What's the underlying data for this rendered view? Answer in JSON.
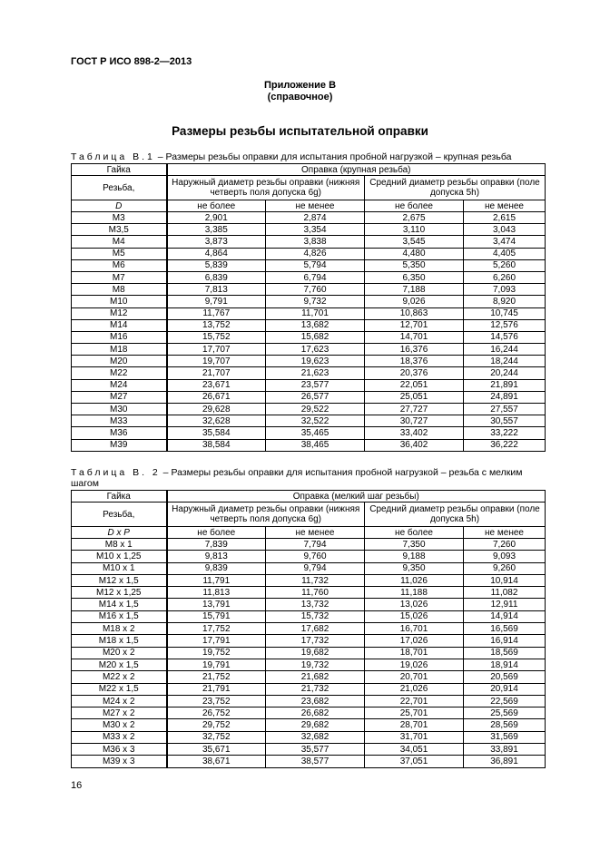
{
  "header": {
    "standard": "ГОСТ Р ИСО 898-2—2013"
  },
  "appendix": {
    "title": "Приложение В",
    "note": "(справочное)"
  },
  "section_title": "Размеры резьбы испытательной оправки",
  "tables": [
    {
      "caption_prefix": "Таблица В.1",
      "caption_text": " – Размеры резьбы оправки для испытания пробной нагрузкой – крупная резьба",
      "col_nut": "Гайка",
      "col_mandrel": "Оправка (крупная резьба)",
      "col_thread": "Резьба,",
      "col_thread_sym": "D",
      "col_outer": "Наружный диаметр резьбы оправки (нижняя четверть поля допуска 6g)",
      "col_pitch": "Средний диаметр резьбы оправки (поле допуска 5h)",
      "max_label": "не более",
      "min_label": "не менее",
      "rows": [
        [
          "M3",
          "2,901",
          "2,874",
          "2,675",
          "2,615"
        ],
        [
          "M3,5",
          "3,385",
          "3,354",
          "3,110",
          "3,043"
        ],
        [
          "M4",
          "3,873",
          "3,838",
          "3,545",
          "3,474"
        ],
        [
          "M5",
          "4,864",
          "4,826",
          "4,480",
          "4,405"
        ],
        [
          "M6",
          "5,839",
          "5,794",
          "5,350",
          "5,260"
        ],
        [
          "M7",
          "6,839",
          "6,794",
          "6,350",
          "6,260"
        ],
        [
          "M8",
          "7,813",
          "7,760",
          "7,188",
          "7,093"
        ],
        [
          "M10",
          "9,791",
          "9,732",
          "9,026",
          "8,920"
        ],
        [
          "M12",
          "11,767",
          "11,701",
          "10,863",
          "10,745"
        ],
        [
          "M14",
          "13,752",
          "13,682",
          "12,701",
          "12,576"
        ],
        [
          "M16",
          "15,752",
          "15,682",
          "14,701",
          "14,576"
        ],
        [
          "M18",
          "17,707",
          "17,623",
          "16,376",
          "16,244"
        ],
        [
          "M20",
          "19,707",
          "19,623",
          "18,376",
          "18,244"
        ],
        [
          "M22",
          "21,707",
          "21,623",
          "20,376",
          "20,244"
        ],
        [
          "M24",
          "23,671",
          "23,577",
          "22,051",
          "21,891"
        ],
        [
          "M27",
          "26,671",
          "26,577",
          "25,051",
          "24,891"
        ],
        [
          "M30",
          "29,628",
          "29,522",
          "27,727",
          "27,557"
        ],
        [
          "M33",
          "32,628",
          "32,522",
          "30,727",
          "30,557"
        ],
        [
          "M36",
          "35,584",
          "35,465",
          "33,402",
          "33,222"
        ],
        [
          "M39",
          "38,584",
          "38,465",
          "36,402",
          "36,222"
        ]
      ]
    },
    {
      "caption_prefix": "Таблица В. 2",
      "caption_text": " – Размеры резьбы оправки для испытания пробной нагрузкой – резьба с мелким шагом",
      "col_nut": "Гайка",
      "col_mandrel": "Оправка (мелкий шаг резьбы)",
      "col_thread": "Резьба,",
      "col_thread_sym": "D x P",
      "col_outer": "Наружный диаметр резьбы оправки (нижняя четверть поля допуска 6g)",
      "col_pitch": "Средний диаметр резьбы оправки (поле допуска 5h)",
      "max_label": "не более",
      "min_label": "не менее",
      "rows": [
        [
          "M8 x 1",
          "7,839",
          "7,794",
          "7,350",
          "7,260"
        ],
        [
          "M10 x 1,25",
          "9,813",
          "9,760",
          "9,188",
          "9,093"
        ],
        [
          "M10 x 1",
          "9,839",
          "9,794",
          "9,350",
          "9,260"
        ],
        [
          "M12 x 1,5",
          "11,791",
          "11,732",
          "11,026",
          "10,914"
        ],
        [
          "M12 x 1,25",
          "11,813",
          "11,760",
          "11,188",
          "11,082"
        ],
        [
          "M14 x 1,5",
          "13,791",
          "13,732",
          "13,026",
          "12,911"
        ],
        [
          "M16 x 1,5",
          "15,791",
          "15,732",
          "15,026",
          "14,914"
        ],
        [
          "M18 x 2",
          "17,752",
          "17,682",
          "16,701",
          "16,569"
        ],
        [
          "M18 x 1,5",
          "17,791",
          "17,732",
          "17,026",
          "16,914"
        ],
        [
          "M20 x 2",
          "19,752",
          "19,682",
          "18,701",
          "18,569"
        ],
        [
          "M20 x 1,5",
          "19,791",
          "19,732",
          "19,026",
          "18,914"
        ],
        [
          "M22 x 2",
          "21,752",
          "21,682",
          "20,701",
          "20,569"
        ],
        [
          "M22 x 1,5",
          "21,791",
          "21,732",
          "21,026",
          "20,914"
        ],
        [
          "M24 x 2",
          "23,752",
          "23,682",
          "22,701",
          "22,569"
        ],
        [
          "M27 x 2",
          "26,752",
          "26,682",
          "25,701",
          "25,569"
        ],
        [
          "M30 x 2",
          "29,752",
          "29,682",
          "28,701",
          "28,569"
        ],
        [
          "M33 x 2",
          "32,752",
          "32,682",
          "31,701",
          "31,569"
        ],
        [
          "M36 x 3",
          "35,671",
          "35,577",
          "34,051",
          "33,891"
        ],
        [
          "M39 x 3",
          "38,671",
          "38,577",
          "37,051",
          "36,891"
        ]
      ]
    }
  ],
  "page_number": "16"
}
